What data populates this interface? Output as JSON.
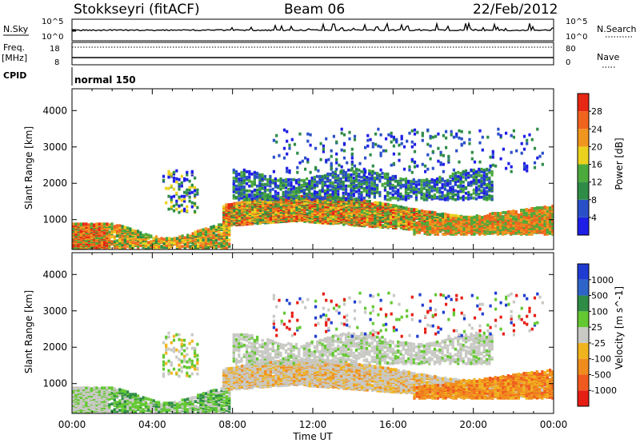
{
  "header": {
    "station": "Stokkseyri (fitACF)",
    "beam": "Beam 06",
    "date": "22/Feb/2012"
  },
  "strip_nsky": {
    "left_label": "N.Sky",
    "right_label": "N.Search",
    "left_ticks": [
      "10^5",
      "10^0"
    ],
    "right_ticks": [
      "10^5",
      "10^0"
    ]
  },
  "strip_freq": {
    "left_label_line1": "Freq.",
    "left_label_line2": "[MHz]",
    "left_ticks": [
      "18",
      "8"
    ],
    "right_label": "Nave",
    "right_ticks": [
      "80",
      "0"
    ]
  },
  "cpid": {
    "label": "CPID",
    "mode": "normal 150"
  },
  "colors": {
    "power": [
      "#1e1ee6",
      "#2a50c8",
      "#2e8c46",
      "#4caa3c",
      "#ebd21e",
      "#f0961e",
      "#f0641e",
      "#e62814"
    ],
    "velocity": [
      "#1e3cd2",
      "#2e64c8",
      "#2e8c46",
      "#64c832",
      "#c8c8c4",
      "#f0b41e",
      "#f08c1e",
      "#f05a1e",
      "#e61e14"
    ]
  },
  "chart_data": [
    {
      "type": "heatmap",
      "xlabel": "",
      "ylabel": "Slant Range [km]",
      "xlim": [
        0,
        24
      ],
      "ylim": [
        180,
        4600
      ],
      "yticks": [
        "1000",
        "2000",
        "3000",
        "4000"
      ],
      "colorbar_label": "Power [dB]",
      "colorbar_ticks": [
        "4",
        "8",
        "12",
        "16",
        "20",
        "24",
        "28"
      ]
    },
    {
      "type": "heatmap",
      "xlabel": "Time UT",
      "ylabel": "Slant Range [km]",
      "xlim": [
        0,
        24
      ],
      "ylim": [
        180,
        4600
      ],
      "xticks": [
        "00:00",
        "04:00",
        "08:00",
        "12:00",
        "16:00",
        "20:00",
        "00:00"
      ],
      "yticks": [
        "1000",
        "2000",
        "3000",
        "4000"
      ],
      "colorbar_label": "Velocity [m s^-1]",
      "colorbar_ticks": [
        "1000",
        "500",
        "100",
        "25",
        "-25",
        "-100",
        "-500",
        "-1000"
      ]
    }
  ]
}
